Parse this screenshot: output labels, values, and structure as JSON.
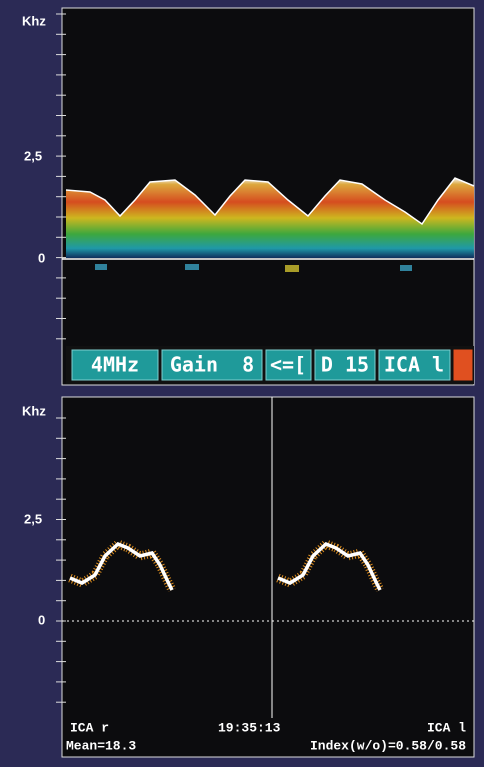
{
  "top_panel": {
    "axis_labels": [
      "Khz",
      "2,5",
      "0"
    ]
  },
  "status_bar": {
    "items": [
      "4MHz",
      "Gain  8",
      "<=[",
      "D 15",
      "ICA l"
    ]
  },
  "bottom_panel": {
    "axis_labels": [
      "Khz",
      "2,5",
      "0"
    ],
    "footer": {
      "line1": [
        "ICA r",
        "19:35:13",
        "ICA l"
      ],
      "line2": [
        "Mean=18.3",
        "Index(w/o)=0.58/0.58"
      ]
    }
  }
}
